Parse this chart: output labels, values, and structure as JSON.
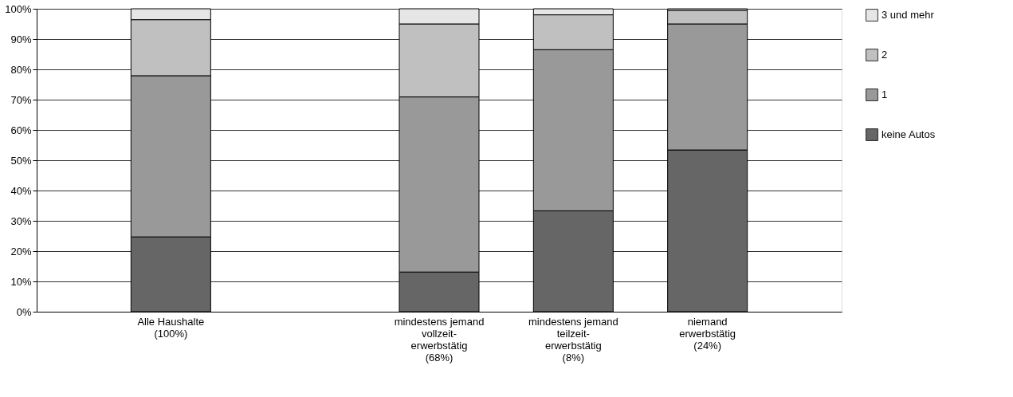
{
  "chart_data": {
    "type": "bar",
    "stacked": true,
    "categories": [
      "Alle Haushalte\n(100%)",
      null,
      "mindestens jemand\nvollzeit-\nerwerbstätig\n(68%)",
      "mindestens jemand\nteilzeit-\nerwerbstätig\n(8%)",
      "niemand\nerwerbstätig\n(24%)"
    ],
    "series": [
      {
        "name": "keine Autos",
        "color": "#666666",
        "values": [
          24.7,
          null,
          13.1,
          33.3,
          53.4
        ]
      },
      {
        "name": "1",
        "color": "#999999",
        "values": [
          53.2,
          null,
          57.8,
          53.2,
          41.6
        ]
      },
      {
        "name": "2",
        "color": "#c0c0c0",
        "values": [
          18.5,
          null,
          24.1,
          11.5,
          4.5
        ]
      },
      {
        "name": "3 und mehr",
        "color": "#e6e6e6",
        "values": [
          3.6,
          null,
          5.0,
          2.0,
          0.5
        ]
      }
    ],
    "ylim": [
      0,
      100
    ],
    "yticks": [
      {
        "value": 0,
        "label": "0%"
      },
      {
        "value": 10,
        "label": "10%"
      },
      {
        "value": 20,
        "label": "20%"
      },
      {
        "value": 30,
        "label": "30%"
      },
      {
        "value": 40,
        "label": "40%"
      },
      {
        "value": 50,
        "label": "50%"
      },
      {
        "value": 60,
        "label": "60%"
      },
      {
        "value": 70,
        "label": "70%"
      },
      {
        "value": 80,
        "label": "80%"
      },
      {
        "value": 90,
        "label": "90%"
      },
      {
        "value": 100,
        "label": "100%"
      }
    ],
    "grid": "y",
    "legend": "right"
  }
}
